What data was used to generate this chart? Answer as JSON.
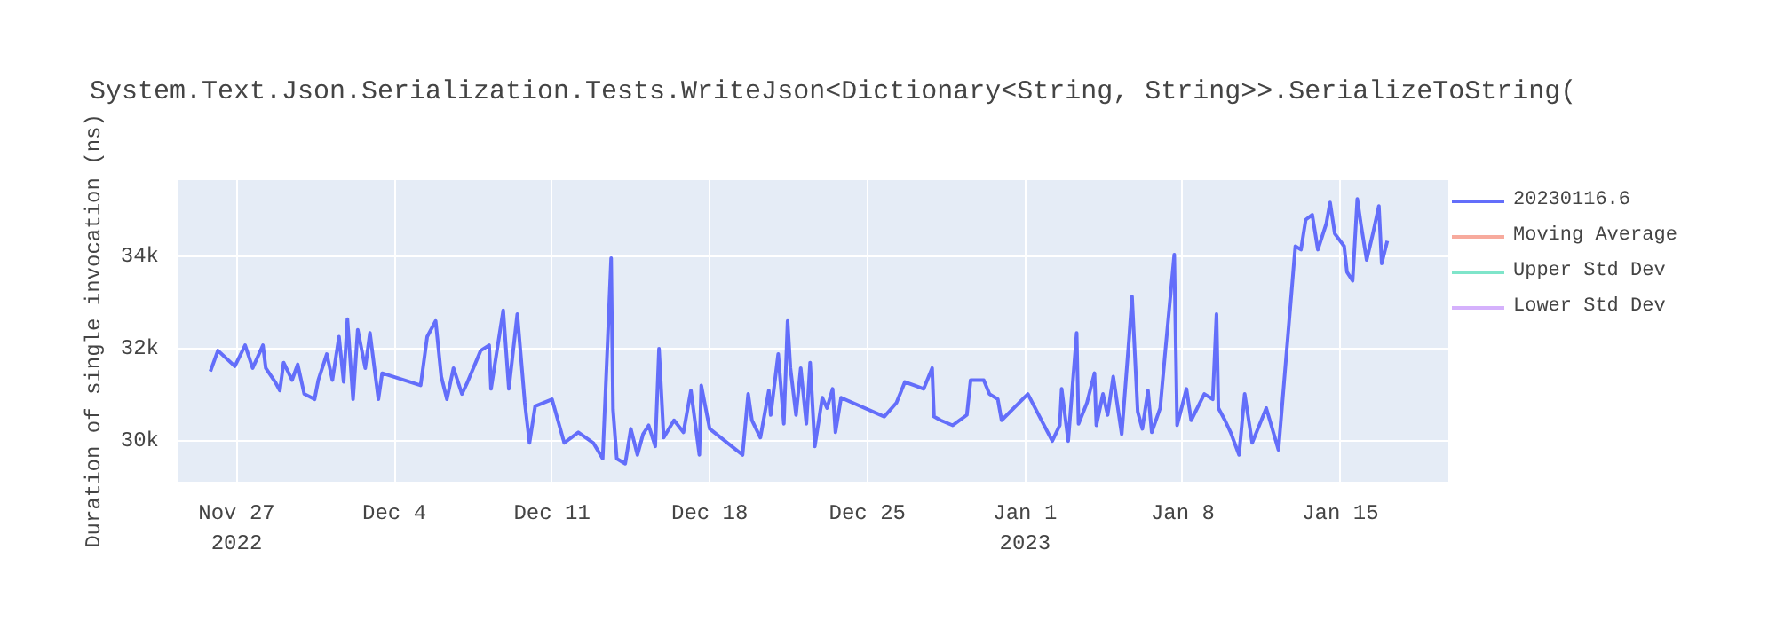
{
  "chart_data": {
    "type": "line",
    "title": "System.Text.Json.Serialization.Tests.WriteJson<Dictionary<String, String>>.SerializeToString(",
    "ylabel": "Duration of single invocation (ns)",
    "x": [
      "2022-11-25T20:00",
      "2022-11-26T04:00",
      "2022-11-26T22:00",
      "2022-11-27T09:00",
      "2022-11-27T17:00",
      "2022-11-28T04:00",
      "2022-11-28T07:00",
      "2022-11-28T17:00",
      "2022-11-28T22:00",
      "2022-11-29T02:00",
      "2022-11-29T11:00",
      "2022-11-29T17:00",
      "2022-11-30T00:00",
      "2022-11-30T11:00",
      "2022-11-30T15:00",
      "2022-12-01T00:00",
      "2022-12-01T06:00",
      "2022-12-01T13:00",
      "2022-12-01T18:00",
      "2022-12-01T22:00",
      "2022-12-02T04:00",
      "2022-12-02T09:00",
      "2022-12-02T17:00",
      "2022-12-02T22:00",
      "2022-12-03T07:00",
      "2022-12-03T11:00",
      "2022-12-05T04:00",
      "2022-12-05T11:00",
      "2022-12-05T20:00",
      "2022-12-06T02:00",
      "2022-12-06T08:00",
      "2022-12-06T15:00",
      "2022-12-07T00:00",
      "2022-12-07T06:00",
      "2022-12-07T20:00",
      "2022-12-08T05:00",
      "2022-12-08T07:00",
      "2022-12-08T20:00",
      "2022-12-09T02:00",
      "2022-12-09T11:00",
      "2022-12-09T19:00",
      "2022-12-10T00:00",
      "2022-12-10T06:00",
      "2022-12-11T00:00",
      "2022-12-11T13:00",
      "2022-12-12T04:00",
      "2022-12-12T20:00",
      "2022-12-13T06:00",
      "2022-12-13T15:00",
      "2022-12-13T17:00",
      "2022-12-13T21:00",
      "2022-12-14T06:00",
      "2022-12-14T12:00",
      "2022-12-14T19:00",
      "2022-12-15T01:00",
      "2022-12-15T07:00",
      "2022-12-15T14:00",
      "2022-12-15T18:00",
      "2022-12-15T23:00",
      "2022-12-16T10:00",
      "2022-12-16T20:00",
      "2022-12-17T04:00",
      "2022-12-17T13:00",
      "2022-12-17T15:00",
      "2022-12-18T00:00",
      "2022-12-19T11:00",
      "2022-12-19T17:00",
      "2022-12-19T21:00",
      "2022-12-20T06:00",
      "2022-12-20T15:00",
      "2022-12-20T17:00",
      "2022-12-21T01:00",
      "2022-12-21T07:00",
      "2022-12-21T11:00",
      "2022-12-21T14:00",
      "2022-12-21T20:00",
      "2022-12-22T01:00",
      "2022-12-22T07:00",
      "2022-12-22T11:00",
      "2022-12-22T16:00",
      "2022-12-23T00:00",
      "2022-12-23T05:00",
      "2022-12-23T11:00",
      "2022-12-23T14:00",
      "2022-12-23T20:00",
      "2022-12-25T18:00",
      "2022-12-26T07:00",
      "2022-12-26T16:00",
      "2022-12-27T02:00",
      "2022-12-27T12:00",
      "2022-12-27T21:00",
      "2022-12-27T23:00",
      "2022-12-28T06:00",
      "2022-12-28T19:00",
      "2022-12-29T10:00",
      "2022-12-29T14:00",
      "2022-12-30T04:00",
      "2022-12-30T10:00",
      "2022-12-30T19:00",
      "2022-12-30T23:00",
      "2023-01-01T03:00",
      "2023-01-02T05:00",
      "2023-01-02T13:00",
      "2023-01-02T15:00",
      "2023-01-02T22:00",
      "2023-01-03T07:00",
      "2023-01-03T09:00",
      "2023-01-03T18:00",
      "2023-01-04T02:00",
      "2023-01-04T04:00",
      "2023-01-04T11:00",
      "2023-01-04T16:00",
      "2023-01-04T22:00",
      "2023-01-05T07:00",
      "2023-01-05T15:00",
      "2023-01-05T18:00",
      "2023-01-06T00:00",
      "2023-01-06T05:00",
      "2023-01-06T11:00",
      "2023-01-06T15:00",
      "2023-01-07T00:00",
      "2023-01-07T05:00",
      "2023-01-07T15:00",
      "2023-01-07T18:00",
      "2023-01-08T04:00",
      "2023-01-08T09:00",
      "2023-01-08T23:00",
      "2023-01-09T08:00",
      "2023-01-09T12:00",
      "2023-01-09T14:00",
      "2023-01-09T21:00",
      "2023-01-10T03:00",
      "2023-01-10T12:00",
      "2023-01-10T18:00",
      "2023-01-11T02:00",
      "2023-01-11T17:00",
      "2023-01-12T06:00",
      "2023-01-13T00:00",
      "2023-01-13T06:00",
      "2023-01-13T11:00",
      "2023-01-13T18:00",
      "2023-01-14T00:00",
      "2023-01-14T09:00",
      "2023-01-14T13:00",
      "2023-01-14T18:00",
      "2023-01-15T04:00",
      "2023-01-15T07:00",
      "2023-01-15T13:00",
      "2023-01-15T18:00",
      "2023-01-15T22:00",
      "2023-01-16T04:00",
      "2023-01-16T11:00",
      "2023-01-16T17:00",
      "2023-01-16T20:00",
      "2023-01-17T02:00"
    ],
    "series": [
      {
        "name": "20230116.6",
        "color": "#636efa",
        "values": [
          31510,
          31960,
          31620,
          32075,
          31580,
          32075,
          31580,
          31280,
          31095,
          31700,
          31320,
          31660,
          31020,
          30905,
          31320,
          31885,
          31320,
          32260,
          31280,
          32640,
          30905,
          32410,
          31580,
          32340,
          30905,
          31470,
          31205,
          32260,
          32600,
          31395,
          30905,
          31580,
          31020,
          31280,
          31960,
          32075,
          31130,
          32830,
          31130,
          32750,
          30830,
          29960,
          30755,
          30905,
          29960,
          30190,
          29960,
          29620,
          33960,
          30680,
          29620,
          29510,
          30265,
          29700,
          30150,
          30340,
          29885,
          32000,
          30075,
          30450,
          30190,
          31095,
          29700,
          31205,
          30265,
          29700,
          31020,
          30450,
          30075,
          31095,
          30565,
          31885,
          30375,
          32600,
          31580,
          30565,
          31580,
          30375,
          31700,
          29885,
          30940,
          30715,
          31130,
          30190,
          30940,
          30530,
          30830,
          31280,
          31205,
          31130,
          31580,
          30530,
          30450,
          30340,
          30565,
          31320,
          31320,
          31020,
          30905,
          30450,
          31020,
          30000,
          30340,
          31130,
          30000,
          32340,
          30375,
          30830,
          31470,
          30340,
          31020,
          30565,
          31395,
          30150,
          32260,
          33130,
          30640,
          30265,
          31095,
          30190,
          30715,
          31850,
          34035,
          30340,
          31130,
          30450,
          31020,
          30905,
          32750,
          30715,
          30450,
          30190,
          29700,
          31020,
          29960,
          30715,
          29810,
          34220,
          34145,
          34790,
          34900,
          34145,
          34710,
          35165,
          34490,
          34220,
          33660,
          33470,
          35240,
          34675,
          33920,
          34525,
          35090,
          33845,
          34335
        ]
      },
      {
        "name": "Moving Average",
        "color": "#ef553b",
        "values": [
          null,
          null,
          null,
          null,
          null,
          null,
          null,
          null,
          null,
          null,
          null,
          null,
          null,
          null,
          null,
          null,
          null,
          null,
          null,
          null,
          null,
          null,
          null,
          null,
          null,
          null,
          null,
          null,
          null,
          null,
          null,
          null,
          null,
          null,
          null,
          null,
          null,
          null,
          null,
          null,
          null,
          null,
          null,
          null,
          null,
          null,
          null,
          null,
          null,
          null,
          null,
          null,
          null,
          null,
          null,
          null,
          null,
          null,
          null,
          null,
          null,
          null,
          null,
          null,
          null,
          null,
          null,
          null,
          null,
          null,
          null,
          null,
          null,
          null,
          null,
          null,
          null,
          null,
          null,
          null,
          null,
          null,
          null,
          null,
          null,
          null,
          null,
          null,
          null,
          null,
          null,
          null,
          null,
          null,
          null,
          null,
          null,
          null,
          null,
          null,
          null,
          null,
          null,
          null,
          null,
          null,
          null,
          null,
          null,
          null,
          null,
          null,
          null,
          null,
          null,
          null,
          null,
          null,
          null,
          null,
          null,
          null,
          null,
          null,
          null,
          null,
          null,
          null,
          null,
          null,
          null,
          null,
          null,
          null,
          null,
          null,
          null,
          null,
          null,
          null,
          null,
          null,
          null,
          null,
          null,
          null,
          null,
          null,
          null,
          null,
          null,
          null,
          null,
          null,
          null
        ]
      },
      {
        "name": "Upper Std Dev",
        "color": "#00cc96",
        "values": [
          null,
          null,
          null,
          null,
          null,
          null,
          null,
          null,
          null,
          null,
          null,
          null,
          null,
          null,
          null,
          null,
          null,
          null,
          null,
          null,
          null,
          null,
          null,
          null,
          null,
          null,
          null,
          null,
          null,
          null,
          null,
          null,
          null,
          null,
          null,
          null,
          null,
          null,
          null,
          null,
          null,
          null,
          null,
          null,
          null,
          null,
          null,
          null,
          null,
          null,
          null,
          null,
          null,
          null,
          null,
          null,
          null,
          null,
          null,
          null,
          null,
          null,
          null,
          null,
          null,
          null,
          null,
          null,
          null,
          null,
          null,
          null,
          null,
          null,
          null,
          null,
          null,
          null,
          null,
          null,
          null,
          null,
          null,
          null,
          null,
          null,
          null,
          null,
          null,
          null,
          null,
          null,
          null,
          null,
          null,
          null,
          null,
          null,
          null,
          null,
          null,
          null,
          null,
          null,
          null,
          null,
          null,
          null,
          null,
          null,
          null,
          null,
          null,
          null,
          null,
          null,
          null,
          null,
          null,
          null,
          null,
          null,
          null,
          null,
          null,
          null,
          null,
          null,
          null,
          null,
          null,
          null,
          null,
          null,
          null,
          null,
          null,
          null,
          null,
          null,
          null,
          null,
          null,
          null,
          null,
          null,
          null,
          null,
          null,
          null,
          null,
          null,
          null,
          null,
          null
        ]
      },
      {
        "name": "Lower Std Dev",
        "color": "#ab63fa",
        "values": [
          null,
          null,
          null,
          null,
          null,
          null,
          null,
          null,
          null,
          null,
          null,
          null,
          null,
          null,
          null,
          null,
          null,
          null,
          null,
          null,
          null,
          null,
          null,
          null,
          null,
          null,
          null,
          null,
          null,
          null,
          null,
          null,
          null,
          null,
          null,
          null,
          null,
          null,
          null,
          null,
          null,
          null,
          null,
          null,
          null,
          null,
          null,
          null,
          null,
          null,
          null,
          null,
          null,
          null,
          null,
          null,
          null,
          null,
          null,
          null,
          null,
          null,
          null,
          null,
          null,
          null,
          null,
          null,
          null,
          null,
          null,
          null,
          null,
          null,
          null,
          null,
          null,
          null,
          null,
          null,
          null,
          null,
          null,
          null,
          null,
          null,
          null,
          null,
          null,
          null,
          null,
          null,
          null,
          null,
          null,
          null,
          null,
          null,
          null,
          null,
          null,
          null,
          null,
          null,
          null,
          null,
          null,
          null,
          null,
          null,
          null,
          null,
          null,
          null,
          null,
          null,
          null,
          null,
          null,
          null,
          null,
          null,
          null,
          null,
          null,
          null,
          null,
          null,
          null,
          null,
          null,
          null,
          null,
          null,
          null,
          null,
          null,
          null,
          null,
          null,
          null,
          null,
          null,
          null,
          null,
          null,
          null,
          null,
          null,
          null,
          null,
          null,
          null,
          null,
          null
        ]
      }
    ],
    "xlim": [
      "2022-11-24T10:00",
      "2023-01-19T19:00"
    ],
    "xticks": [
      {
        "value": "2022-11-27",
        "label": "Nov 27\n2022"
      },
      {
        "value": "2022-12-04",
        "label": "Dec 4"
      },
      {
        "value": "2022-12-11",
        "label": "Dec 11"
      },
      {
        "value": "2022-12-18",
        "label": "Dec 18"
      },
      {
        "value": "2022-12-25",
        "label": "Dec 25"
      },
      {
        "value": "2023-01-01",
        "label": "Jan 1\n2023"
      },
      {
        "value": "2023-01-08",
        "label": "Jan 8"
      },
      {
        "value": "2023-01-15",
        "label": "Jan 15"
      }
    ],
    "ylim": [
      29120,
      35650
    ],
    "yticks": [
      {
        "value": 30000,
        "label": "30k"
      },
      {
        "value": 32000,
        "label": "32k"
      },
      {
        "value": 34000,
        "label": "34k"
      }
    ],
    "grid": true,
    "legend": "right",
    "line_style": "solid",
    "marker": "none"
  }
}
